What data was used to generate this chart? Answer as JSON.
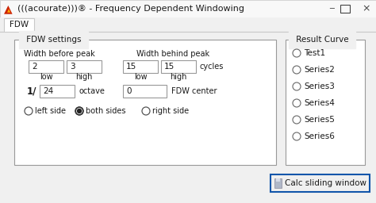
{
  "title": "(((acourate)))® - Frequency Dependent Windowing",
  "bg_color": "#f0f0f0",
  "white": "#ffffff",
  "tab_label": "FDW",
  "fdw_settings_label": "FDW settings",
  "result_curve_label": "Result Curve",
  "width_before_peak": "Width before peak",
  "width_behind_peak": "Width behind peak",
  "val_2": "2",
  "val_3": "3",
  "val_15a": "15",
  "val_15b": "15",
  "cycles": "cycles",
  "low": "low",
  "high": "high",
  "fraction_label": "1/",
  "octave_val": "24",
  "octave_label": "octave",
  "fdw_center_val": "0",
  "fdw_center_label": "FDW center",
  "radio_left": "left side",
  "radio_both": "both sides",
  "radio_right": "right side",
  "result_items": [
    "Test1",
    "Series2",
    "Series3",
    "Series4",
    "Series5",
    "Series6"
  ],
  "button_label": "Calc sliding window",
  "button_border": "#1155aa",
  "box_border": "#999999",
  "text_color": "#1a1a1a",
  "accent_red": "#cc2200",
  "win_border": "#c8c8c8",
  "titlebar_bg": "#f8f8f8",
  "content_bg": "#f0f0f0"
}
